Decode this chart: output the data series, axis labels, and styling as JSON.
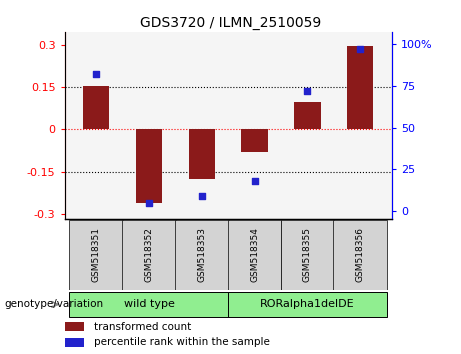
{
  "title": "GDS3720 / ILMN_2510059",
  "samples": [
    "GSM518351",
    "GSM518352",
    "GSM518353",
    "GSM518354",
    "GSM518355",
    "GSM518356"
  ],
  "bar_values": [
    0.153,
    -0.263,
    -0.175,
    -0.08,
    0.095,
    0.295
  ],
  "percentile_values": [
    82,
    5,
    9,
    18,
    72,
    97
  ],
  "bar_color": "#8B1A1A",
  "dot_color": "#2222CC",
  "ylim_left": [
    -0.32,
    0.345
  ],
  "ylim_right": [
    -4.8,
    107
  ],
  "yticks_left": [
    -0.3,
    -0.15,
    0,
    0.15,
    0.3
  ],
  "yticks_right": [
    0,
    25,
    50,
    75,
    100
  ],
  "left_tick_labels": [
    "-0.3",
    "-0.15",
    "0",
    "0.15",
    "0.3"
  ],
  "right_tick_labels": [
    "0",
    "25",
    "50",
    "75",
    "100%"
  ],
  "hlines": [
    -0.15,
    0,
    0.15
  ],
  "hline_colors": [
    "black",
    "red",
    "black"
  ],
  "hline_styles": [
    "dotted",
    "dotted",
    "dotted"
  ],
  "bar_width": 0.5,
  "bg_color": "#f5f5f5",
  "group_label": "genotype/variation",
  "wt_label": "wild type",
  "ror_label": "RORalpha1delDE",
  "group_color": "#90EE90",
  "legend_items": [
    {
      "color": "#8B1A1A",
      "label": "transformed count"
    },
    {
      "color": "#2222CC",
      "label": "percentile rank within the sample"
    }
  ]
}
